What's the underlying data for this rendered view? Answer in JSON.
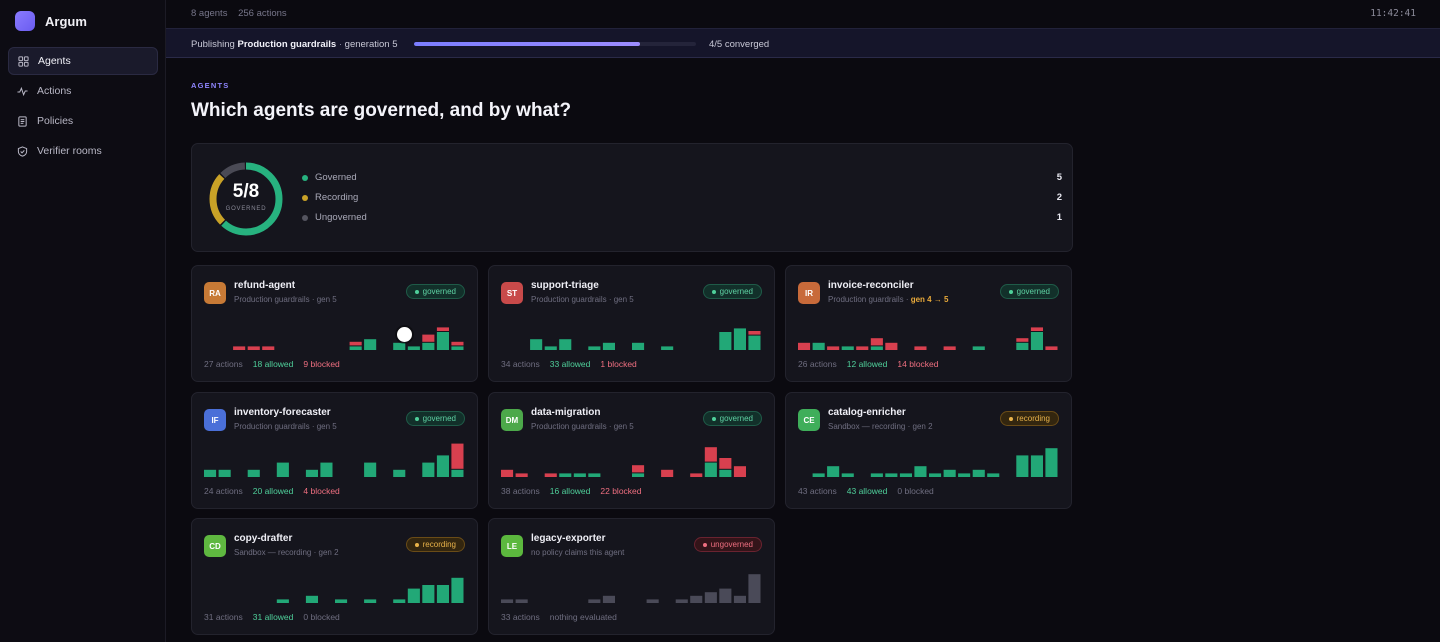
{
  "app": {
    "name": "Argum"
  },
  "nav": [
    {
      "id": "agents",
      "label": "Agents",
      "icon": "grid-icon",
      "active": true
    },
    {
      "id": "actions",
      "label": "Actions",
      "icon": "activity-icon",
      "active": false
    },
    {
      "id": "policies",
      "label": "Policies",
      "icon": "document-icon",
      "active": false
    },
    {
      "id": "verifier-rooms",
      "label": "Verifier rooms",
      "icon": "shield-icon",
      "active": false
    }
  ],
  "topbar": {
    "agents": "8 agents",
    "actions": "256 actions",
    "clock": "11:42:41"
  },
  "publishing": {
    "prefix": "Publishing",
    "policy": "Production guardrails",
    "generation": "generation 5",
    "progress": 0.8,
    "status": "4/5 converged"
  },
  "page": {
    "eyebrow": "AGENTS",
    "title": "Which agents are governed, and by what?"
  },
  "summary": {
    "ratio": "5/8",
    "ratio_label": "GOVERNED",
    "counts": {
      "governed": 5,
      "recording": 2,
      "ungoverned": 1
    },
    "rows": [
      {
        "key": "governed",
        "label": "Governed",
        "count": "5",
        "color": "#27b27f"
      },
      {
        "key": "recording",
        "label": "Recording",
        "count": "2",
        "color": "#c9a227"
      },
      {
        "key": "ungoverned",
        "label": "Ungoverned",
        "count": "1",
        "color": "#54545f"
      }
    ]
  },
  "colors": {
    "allowed": "#22a877",
    "blocked": "#d8404f",
    "neutral": "#4a4a58"
  },
  "agents": [
    {
      "initials": "RA",
      "name": "refund-agent",
      "policy": "Production guardrails",
      "gen": "gen 5",
      "gen_pending": "",
      "status": "governed",
      "avatar_color": "#c77a36",
      "actions": "27 actions",
      "allowed": "18 allowed",
      "blocked": "9 blocked",
      "blocked_zero": false,
      "buckets": [
        [
          0,
          0
        ],
        [
          0,
          0
        ],
        [
          0,
          1
        ],
        [
          0,
          1
        ],
        [
          0,
          1
        ],
        [
          0,
          0
        ],
        [
          0,
          0
        ],
        [
          0,
          0
        ],
        [
          0,
          0
        ],
        [
          0,
          0
        ],
        [
          1,
          1
        ],
        [
          3,
          0
        ],
        [
          0,
          0
        ],
        [
          2,
          0
        ],
        [
          1,
          0
        ],
        [
          2,
          2
        ],
        [
          5,
          1
        ],
        [
          1,
          1
        ]
      ]
    },
    {
      "initials": "ST",
      "name": "support-triage",
      "policy": "Production guardrails",
      "gen": "gen 5",
      "gen_pending": "",
      "status": "governed",
      "avatar_color": "#c84a4a",
      "actions": "34 actions",
      "allowed": "33 allowed",
      "blocked": "1 blocked",
      "blocked_zero": false,
      "buckets": [
        [
          0,
          0
        ],
        [
          0,
          0
        ],
        [
          3,
          0
        ],
        [
          1,
          0
        ],
        [
          3,
          0
        ],
        [
          0,
          0
        ],
        [
          1,
          0
        ],
        [
          2,
          0
        ],
        [
          0,
          0
        ],
        [
          2,
          0
        ],
        [
          0,
          0
        ],
        [
          1,
          0
        ],
        [
          0,
          0
        ],
        [
          0,
          0
        ],
        [
          0,
          0
        ],
        [
          5,
          0
        ],
        [
          6,
          0
        ],
        [
          4,
          1
        ]
      ]
    },
    {
      "initials": "IR",
      "name": "invoice-reconciler",
      "policy": "Production guardrails",
      "gen": "gen 4",
      "gen_pending": "gen 4 → 5",
      "status": "governed",
      "avatar_color": "#c86a3a",
      "actions": "26 actions",
      "allowed": "12 allowed",
      "blocked": "14 blocked",
      "blocked_zero": false,
      "buckets": [
        [
          0,
          2
        ],
        [
          2,
          0
        ],
        [
          0,
          1
        ],
        [
          1,
          0
        ],
        [
          0,
          1
        ],
        [
          1,
          2
        ],
        [
          0,
          2
        ],
        [
          0,
          0
        ],
        [
          0,
          1
        ],
        [
          0,
          0
        ],
        [
          0,
          1
        ],
        [
          0,
          0
        ],
        [
          1,
          0
        ],
        [
          0,
          0
        ],
        [
          0,
          0
        ],
        [
          2,
          1
        ],
        [
          5,
          1
        ],
        [
          0,
          1
        ]
      ]
    },
    {
      "initials": "IF",
      "name": "inventory-forecaster",
      "policy": "Production guardrails",
      "gen": "gen 5",
      "gen_pending": "",
      "status": "governed",
      "avatar_color": "#4a6fd8",
      "actions": "24 actions",
      "allowed": "20 allowed",
      "blocked": "4 blocked",
      "blocked_zero": false,
      "buckets": [
        [
          2,
          0
        ],
        [
          2,
          0
        ],
        [
          0,
          0
        ],
        [
          2,
          0
        ],
        [
          0,
          0
        ],
        [
          4,
          0
        ],
        [
          0,
          0
        ],
        [
          2,
          0
        ],
        [
          4,
          0
        ],
        [
          0,
          0
        ],
        [
          0,
          0
        ],
        [
          4,
          0
        ],
        [
          0,
          0
        ],
        [
          2,
          0
        ],
        [
          0,
          0
        ],
        [
          4,
          0
        ],
        [
          6,
          0
        ],
        [
          2,
          7
        ]
      ]
    },
    {
      "initials": "DM",
      "name": "data-migration",
      "policy": "Production guardrails",
      "gen": "gen 5",
      "gen_pending": "",
      "status": "governed",
      "avatar_color": "#4ca84a",
      "actions": "38 actions",
      "allowed": "16 allowed",
      "blocked": "22 blocked",
      "blocked_zero": false,
      "buckets": [
        [
          0,
          2
        ],
        [
          0,
          1
        ],
        [
          0,
          0
        ],
        [
          0,
          1
        ],
        [
          1,
          0
        ],
        [
          1,
          0
        ],
        [
          1,
          0
        ],
        [
          0,
          0
        ],
        [
          0,
          0
        ],
        [
          1,
          2
        ],
        [
          0,
          0
        ],
        [
          0,
          2
        ],
        [
          0,
          0
        ],
        [
          0,
          1
        ],
        [
          4,
          4
        ],
        [
          2,
          3
        ],
        [
          0,
          3
        ],
        [
          0,
          0
        ]
      ]
    },
    {
      "initials": "CE",
      "name": "catalog-enricher",
      "policy": "Sandbox — recording",
      "gen": "gen 2",
      "gen_pending": "",
      "status": "recording",
      "avatar_color": "#3fae5a",
      "actions": "43 actions",
      "allowed": "43 allowed",
      "blocked": "0 blocked",
      "blocked_zero": true,
      "buckets": [
        [
          0,
          0
        ],
        [
          1,
          0
        ],
        [
          3,
          0
        ],
        [
          1,
          0
        ],
        [
          0,
          0
        ],
        [
          1,
          0
        ],
        [
          1,
          0
        ],
        [
          1,
          0
        ],
        [
          3,
          0
        ],
        [
          1,
          0
        ],
        [
          2,
          0
        ],
        [
          1,
          0
        ],
        [
          2,
          0
        ],
        [
          1,
          0
        ],
        [
          0,
          0
        ],
        [
          6,
          0
        ],
        [
          6,
          0
        ],
        [
          8,
          0
        ]
      ]
    },
    {
      "initials": "CD",
      "name": "copy-drafter",
      "policy": "Sandbox — recording",
      "gen": "gen 2",
      "gen_pending": "",
      "status": "recording",
      "avatar_color": "#5fb840",
      "actions": "31 actions",
      "allowed": "31 allowed",
      "blocked": "0 blocked",
      "blocked_zero": true,
      "buckets": [
        [
          0,
          0
        ],
        [
          0,
          0
        ],
        [
          0,
          0
        ],
        [
          0,
          0
        ],
        [
          0,
          0
        ],
        [
          1,
          0
        ],
        [
          0,
          0
        ],
        [
          2,
          0
        ],
        [
          0,
          0
        ],
        [
          1,
          0
        ],
        [
          0,
          0
        ],
        [
          1,
          0
        ],
        [
          0,
          0
        ],
        [
          1,
          0
        ],
        [
          4,
          0
        ],
        [
          5,
          0
        ],
        [
          5,
          0
        ],
        [
          7,
          0
        ]
      ]
    },
    {
      "initials": "LE",
      "name": "legacy-exporter",
      "policy": "no policy claims this agent",
      "gen": "",
      "gen_pending": "",
      "status": "ungoverned",
      "avatar_color": "#5cb83e",
      "actions": "33 actions",
      "allowed": "nothing evaluated",
      "blocked": "",
      "blocked_zero": true,
      "neutral": true,
      "buckets": [
        [
          1,
          0
        ],
        [
          1,
          0
        ],
        [
          0,
          0
        ],
        [
          0,
          0
        ],
        [
          0,
          0
        ],
        [
          0,
          0
        ],
        [
          1,
          0
        ],
        [
          2,
          0
        ],
        [
          0,
          0
        ],
        [
          0,
          0
        ],
        [
          1,
          0
        ],
        [
          0,
          0
        ],
        [
          1,
          0
        ],
        [
          2,
          0
        ],
        [
          3,
          0
        ],
        [
          4,
          0
        ],
        [
          2,
          0
        ],
        [
          8,
          0
        ]
      ]
    }
  ]
}
